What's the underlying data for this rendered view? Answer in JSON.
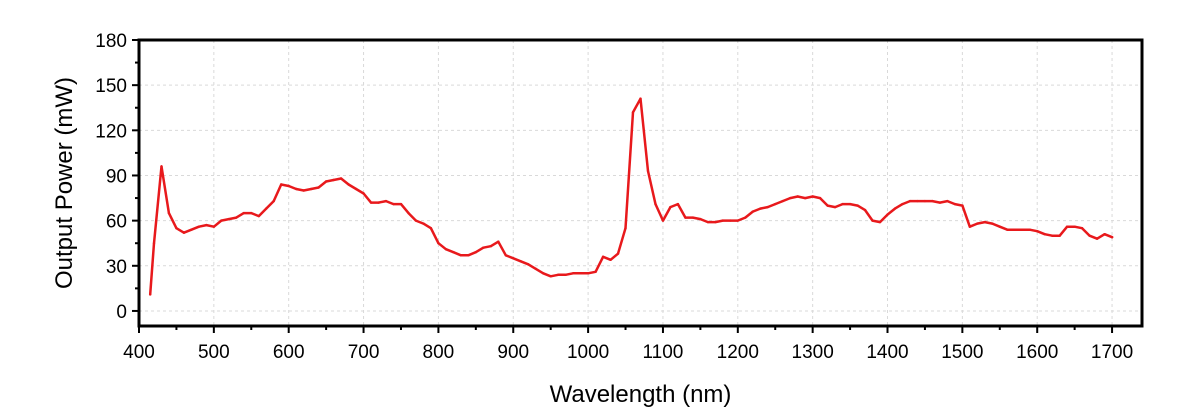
{
  "chart_data": {
    "type": "line",
    "title": "",
    "xlabel": "Wavelength (nm)",
    "ylabel": "Output Power (mW)",
    "xlim": [
      400,
      1740
    ],
    "ylim": [
      -10,
      180
    ],
    "x_ticks": [
      400,
      500,
      600,
      700,
      800,
      900,
      1000,
      1100,
      1200,
      1300,
      1400,
      1500,
      1600,
      1700
    ],
    "y_ticks": [
      0,
      30,
      60,
      90,
      120,
      150,
      180
    ],
    "grid": true,
    "legend": "none",
    "series": [
      {
        "color": "#e8191c",
        "x": [
          415,
          420,
          430,
          440,
          450,
          460,
          470,
          480,
          490,
          500,
          510,
          520,
          530,
          540,
          550,
          560,
          570,
          580,
          590,
          600,
          610,
          620,
          630,
          640,
          650,
          660,
          670,
          680,
          690,
          700,
          710,
          720,
          730,
          740,
          750,
          760,
          770,
          780,
          790,
          800,
          810,
          820,
          830,
          840,
          850,
          860,
          870,
          880,
          890,
          900,
          910,
          920,
          930,
          940,
          950,
          960,
          970,
          980,
          990,
          1000,
          1010,
          1020,
          1030,
          1040,
          1050,
          1060,
          1070,
          1080,
          1090,
          1100,
          1110,
          1120,
          1130,
          1140,
          1150,
          1160,
          1170,
          1180,
          1190,
          1200,
          1210,
          1220,
          1230,
          1240,
          1250,
          1260,
          1270,
          1280,
          1290,
          1300,
          1310,
          1320,
          1330,
          1340,
          1350,
          1360,
          1370,
          1380,
          1390,
          1400,
          1410,
          1420,
          1430,
          1440,
          1450,
          1460,
          1470,
          1480,
          1490,
          1500,
          1510,
          1520,
          1530,
          1540,
          1550,
          1560,
          1570,
          1580,
          1590,
          1600,
          1610,
          1620,
          1630,
          1640,
          1650,
          1660,
          1670,
          1680,
          1690,
          1700
        ],
        "values": [
          11,
          45,
          96,
          65,
          55,
          52,
          54,
          56,
          57,
          56,
          60,
          61,
          62,
          65,
          65,
          63,
          68,
          73,
          84,
          83,
          81,
          80,
          81,
          82,
          86,
          87,
          88,
          84,
          81,
          78,
          72,
          72,
          73,
          71,
          71,
          65,
          60,
          58,
          55,
          45,
          41,
          39,
          37,
          37,
          39,
          42,
          43,
          46,
          37,
          35,
          33,
          31,
          28,
          25,
          23,
          24,
          24,
          25,
          25,
          25,
          26,
          36,
          34,
          38,
          55,
          132,
          141,
          93,
          71,
          60,
          69,
          71,
          62,
          62,
          61,
          59,
          59,
          60,
          60,
          60,
          62,
          66,
          68,
          69,
          71,
          73,
          75,
          76,
          75,
          76,
          75,
          70,
          69,
          71,
          71,
          70,
          67,
          60,
          59,
          64,
          68,
          71,
          73,
          73,
          73,
          73,
          72,
          73,
          71,
          70,
          56,
          58,
          59,
          58,
          56,
          54,
          54,
          54,
          54,
          53,
          51,
          50,
          50,
          56,
          56,
          55,
          50,
          48,
          51,
          49
        ]
      }
    ]
  }
}
